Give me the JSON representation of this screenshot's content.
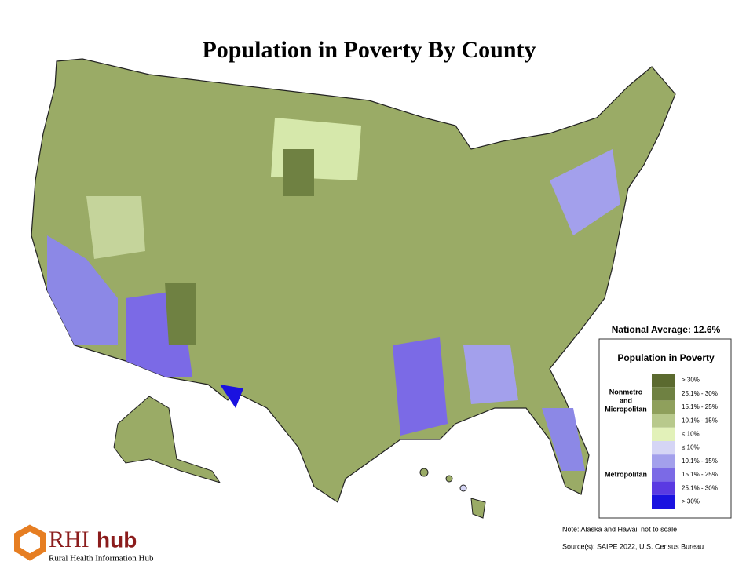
{
  "title": "Population in Poverty By County",
  "national_average": "National Average: 12.6%",
  "legend": {
    "title": "Population in Poverty",
    "groups": [
      {
        "label": [
          "Nonmetro",
          "and",
          "Micropolitan"
        ],
        "items": [
          {
            "label": "> 30%",
            "color": "#5b6a2f"
          },
          {
            "label": "25.1% - 30%",
            "color": "#6f8142"
          },
          {
            "label": "15.1% - 25%",
            "color": "#8fa05c"
          },
          {
            "label": "10.1% - 15%",
            "color": "#b8c98c"
          },
          {
            "label": "≤ 10%",
            "color": "#e2f1b9"
          }
        ]
      },
      {
        "label": [
          "Metropolitan"
        ],
        "items": [
          {
            "label": "≤ 10%",
            "color": "#d5d5f5"
          },
          {
            "label": "10.1% - 15%",
            "color": "#a3a0ec"
          },
          {
            "label": "15.1% - 25%",
            "color": "#7b6ae6"
          },
          {
            "label": "25.1% - 30%",
            "color": "#5a3ae2"
          },
          {
            "label": "> 30%",
            "color": "#1a12e0"
          }
        ]
      }
    ]
  },
  "note": "Note: Alaska and Hawaii not to scale",
  "source": "Source(s): SAIPE 2022, U.S. Census Bureau",
  "logo": {
    "name": "RHI",
    "suffix": "hub",
    "tagline": "Rural Health Information Hub"
  }
}
